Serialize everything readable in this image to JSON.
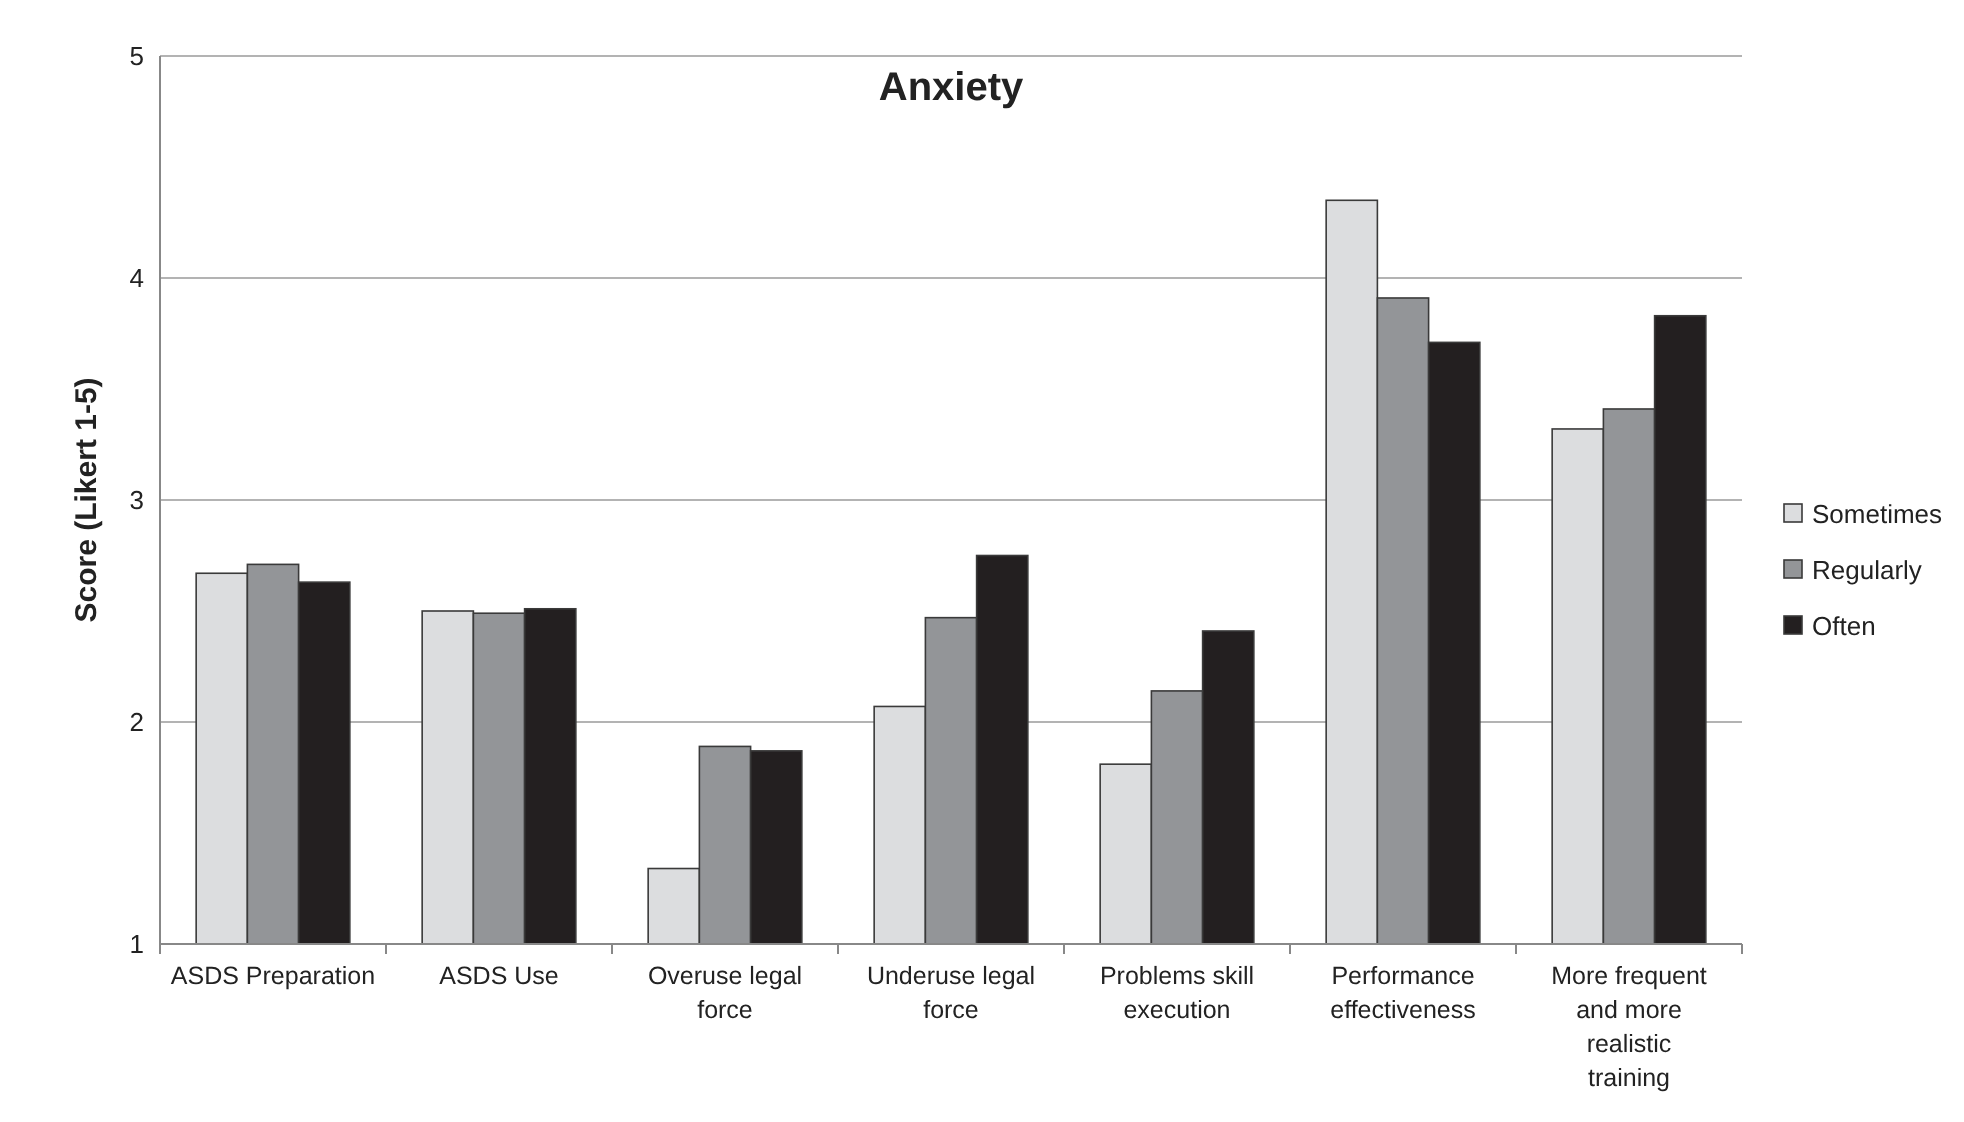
{
  "chart_data": {
    "type": "bar",
    "title": "Anxiety",
    "ylabel": "Score (Likert 1-5)",
    "categories": [
      "ASDS Preparation",
      "ASDS Use",
      "Overuse legal force",
      "Underuse legal force",
      "Problems skill execution",
      "Performance effectiveness",
      "More frequent and more realistic training"
    ],
    "series": [
      {
        "name": "Sometimes",
        "color": "#dcdddf",
        "values": [
          2.67,
          2.5,
          1.34,
          2.07,
          1.81,
          4.35,
          3.32
        ]
      },
      {
        "name": "Regularly",
        "color": "#939598",
        "values": [
          2.71,
          2.49,
          1.89,
          2.47,
          2.14,
          3.91,
          3.41
        ]
      },
      {
        "name": "Often",
        "color": "#231f20",
        "values": [
          2.63,
          2.51,
          1.87,
          2.75,
          2.41,
          3.71,
          3.83
        ]
      }
    ],
    "ylim": [
      1,
      5
    ],
    "yticks": [
      1,
      2,
      3,
      4,
      5
    ],
    "grid": "y",
    "legend": "right"
  }
}
